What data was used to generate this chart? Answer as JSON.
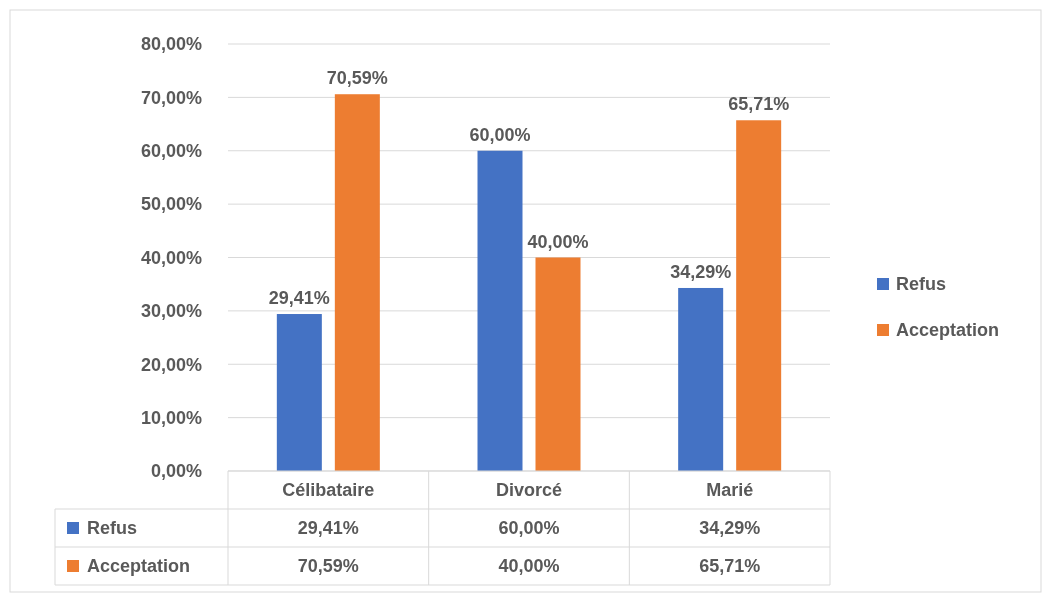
{
  "chart_data": {
    "type": "bar",
    "categories": [
      "Célibataire",
      "Divorcé",
      "Marié"
    ],
    "series": [
      {
        "name": "Refus",
        "color": "#4472c4",
        "values": [
          29.41,
          60.0,
          34.29
        ],
        "value_labels": [
          "29,41%",
          "60,00%",
          "34,29%"
        ]
      },
      {
        "name": "Acceptation",
        "color": "#ed7d31",
        "values": [
          70.59,
          40.0,
          65.71
        ],
        "value_labels": [
          "70,59%",
          "40,00%",
          "65,71%"
        ]
      }
    ],
    "ylim": [
      0,
      80
    ],
    "yticks": [
      {
        "value": 0,
        "label": "0,00%"
      },
      {
        "value": 10,
        "label": "10,00%"
      },
      {
        "value": 20,
        "label": "20,00%"
      },
      {
        "value": 30,
        "label": "30,00%"
      },
      {
        "value": 40,
        "label": "40,00%"
      },
      {
        "value": 50,
        "label": "50,00%"
      },
      {
        "value": 60,
        "label": "60,00%"
      },
      {
        "value": 70,
        "label": "70,00%"
      },
      {
        "value": 80,
        "label": "80,00%"
      }
    ],
    "grid": "y",
    "legend": "right"
  }
}
